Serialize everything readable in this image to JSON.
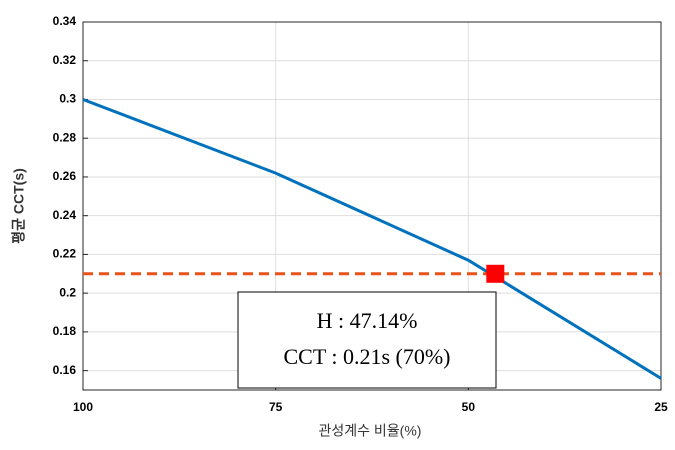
{
  "chart_data": {
    "type": "line",
    "xlabel": "관성계수 비율(%)",
    "ylabel": "평균 CCT(s)",
    "x": [
      100,
      75,
      50,
      25
    ],
    "series": [
      {
        "color": "#0072bd",
        "values": [
          0.3,
          0.262,
          0.217,
          0.156
        ]
      }
    ],
    "xlim": [
      100,
      25
    ],
    "xticks": [
      100,
      75,
      50,
      25
    ],
    "ylim": [
      0.15,
      0.34
    ],
    "yticks": [
      0.16,
      0.18,
      {
        "value": 0.2,
        "label": "0.2"
      },
      0.22,
      0.24,
      0.26,
      0.28,
      {
        "value": 0.3,
        "label": "0.3"
      },
      0.32,
      0.34
    ],
    "grid": true,
    "hline": {
      "value": 0.21,
      "color": "#e8501e",
      "style": "dashed"
    },
    "marker": {
      "x": 46.5,
      "y": 0.21,
      "color": "#ff0000"
    },
    "annotations": [
      "H : 47.14%",
      "CCT : 0.21s (70%)"
    ]
  }
}
